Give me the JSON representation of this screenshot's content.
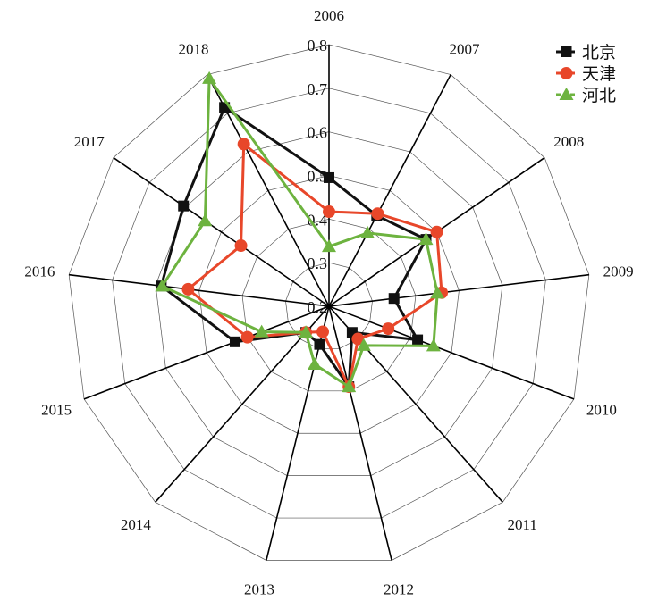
{
  "chart_data": {
    "type": "radar",
    "title": "",
    "categories": [
      "2006",
      "2007",
      "2008",
      "2009",
      "2010",
      "2011",
      "2012",
      "2013",
      "2014",
      "2015",
      "2016",
      "2017",
      "2018"
    ],
    "rlim": [
      0.2,
      0.8
    ],
    "ticks": [
      "0.2",
      "0.3",
      "0.4",
      "0.5",
      "0.6",
      "0.7",
      "0.8"
    ],
    "tick_values": [
      0.2,
      0.3,
      0.4,
      0.5,
      0.6,
      0.7,
      0.8
    ],
    "legend_position": "top-right",
    "series": [
      {
        "name": "北京",
        "color": "#111111",
        "marker": "square",
        "values": [
          0.495,
          0.435,
          0.47,
          0.35,
          0.417,
          0.28,
          0.39,
          0.29,
          0.28,
          0.43,
          0.587,
          0.605,
          0.715
        ]
      },
      {
        "name": "天津",
        "color": "#e8472a",
        "marker": "circle",
        "values": [
          0.417,
          0.44,
          0.5,
          0.46,
          0.345,
          0.3,
          0.39,
          0.26,
          0.28,
          0.4,
          0.525,
          0.445,
          0.62
        ]
      },
      {
        "name": "河北",
        "color": "#6db33f",
        "marker": "triangle",
        "values": [
          0.337,
          0.39,
          0.47,
          0.45,
          0.456,
          0.32,
          0.39,
          0.337,
          0.28,
          0.365,
          0.585,
          0.545,
          0.79
        ]
      }
    ]
  }
}
